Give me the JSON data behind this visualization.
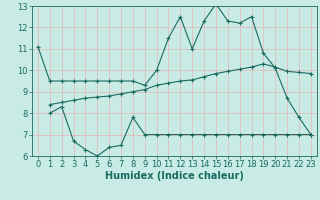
{
  "xlabel": "Humidex (Indice chaleur)",
  "bg_color": "#c8ebe6",
  "grid_color": "#e8b4b4",
  "line_color": "#1a6b60",
  "xlim": [
    -0.5,
    23.5
  ],
  "ylim": [
    6,
    13
  ],
  "yticks": [
    6,
    7,
    8,
    9,
    10,
    11,
    12,
    13
  ],
  "xticks": [
    0,
    1,
    2,
    3,
    4,
    5,
    6,
    7,
    8,
    9,
    10,
    11,
    12,
    13,
    14,
    15,
    16,
    17,
    18,
    19,
    20,
    21,
    22,
    23
  ],
  "line1_x": [
    0,
    1,
    2,
    3,
    4,
    5,
    6,
    7,
    8,
    9,
    10,
    11,
    12,
    13,
    14,
    15,
    16,
    17,
    18,
    19,
    20,
    21,
    22,
    23
  ],
  "line1_y": [
    11.1,
    9.5,
    9.5,
    9.5,
    9.5,
    9.5,
    9.5,
    9.5,
    9.5,
    9.3,
    10.0,
    11.5,
    12.5,
    11.0,
    12.3,
    13.1,
    12.3,
    12.2,
    12.5,
    10.8,
    10.1,
    8.7,
    7.8,
    7.0
  ],
  "line2_x": [
    1,
    2,
    3,
    4,
    5,
    6,
    7,
    8,
    9,
    10,
    11,
    12,
    13,
    14,
    15,
    16,
    17,
    18,
    19,
    20,
    21,
    22,
    23
  ],
  "line2_y": [
    8.4,
    8.5,
    8.6,
    8.7,
    8.75,
    8.8,
    8.9,
    9.0,
    9.1,
    9.3,
    9.4,
    9.5,
    9.55,
    9.7,
    9.85,
    9.95,
    10.05,
    10.15,
    10.3,
    10.15,
    9.95,
    9.9,
    9.85
  ],
  "line3_x": [
    1,
    2,
    3,
    4,
    5,
    6,
    7,
    8,
    9,
    10,
    11,
    12,
    13,
    14,
    15,
    16,
    17,
    18,
    19,
    20,
    21,
    22,
    23
  ],
  "line3_y": [
    8.0,
    8.3,
    6.7,
    6.3,
    6.0,
    6.4,
    6.5,
    7.8,
    7.0,
    7.0,
    7.0,
    7.0,
    7.0,
    7.0,
    7.0,
    7.0,
    7.0,
    7.0,
    7.0,
    7.0,
    7.0,
    7.0,
    7.0
  ],
  "xlabel_fontsize": 7,
  "tick_fontsize": 6
}
